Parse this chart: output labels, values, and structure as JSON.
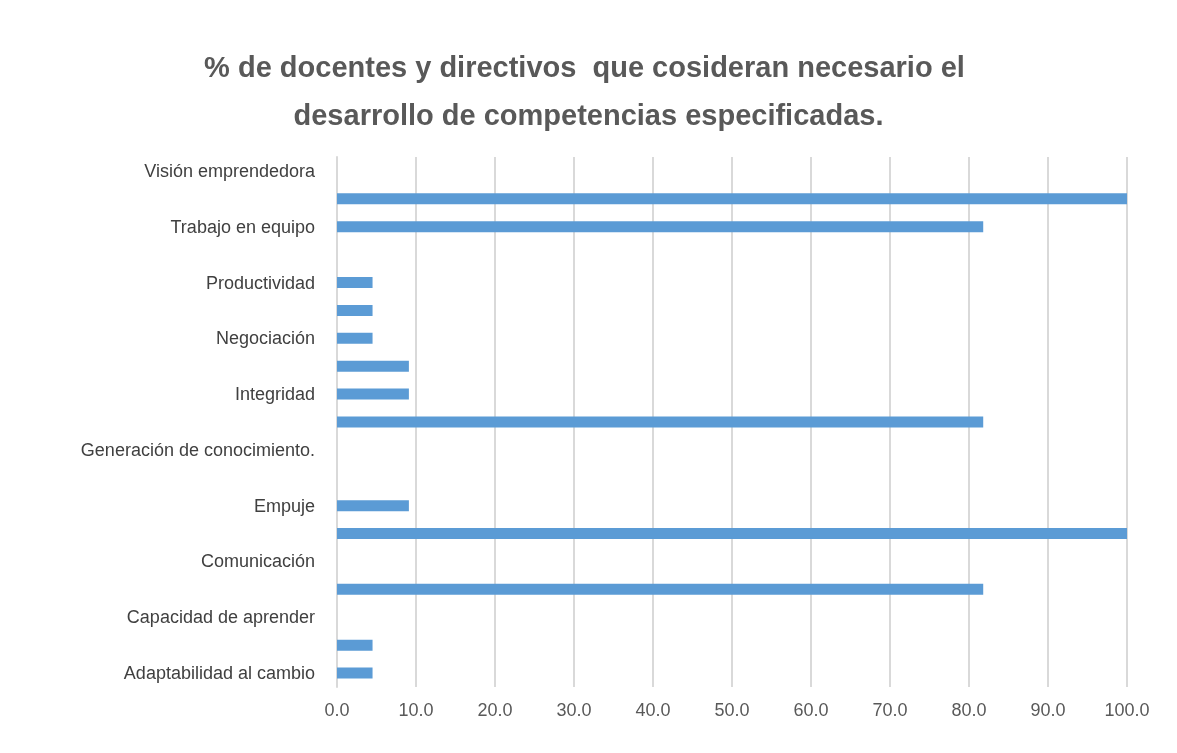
{
  "chart_data": {
    "type": "bar",
    "orientation": "horizontal",
    "title": "% de docentes y directivos  que cosideran necesario el desarrollo de competencias especificadas.",
    "categories": [
      "Visión emprendedora",
      null,
      "Trabajo en equipo",
      null,
      "Productividad",
      null,
      "Negociación",
      null,
      "Integridad",
      null,
      "Generación de conocimiento.",
      null,
      "Empuje",
      null,
      "Comunicación",
      null,
      "Capacidad de aprender",
      null,
      "Adaptabilidad al cambio"
    ],
    "values": [
      null,
      100,
      81.8,
      null,
      4.5,
      4.5,
      4.5,
      9.1,
      9.1,
      81.8,
      null,
      null,
      9.1,
      100,
      null,
      81.8,
      null,
      4.5,
      4.5
    ],
    "color": "#5b9bd5",
    "xlim": [
      0,
      100
    ],
    "xticks": [
      {
        "value": 0,
        "label": "0.0"
      },
      {
        "value": 10,
        "label": "10.0"
      },
      {
        "value": 20,
        "label": "20.0"
      },
      {
        "value": 30,
        "label": "30.0"
      },
      {
        "value": 40,
        "label": "40.0"
      },
      {
        "value": 50,
        "label": "50.0"
      },
      {
        "value": 60,
        "label": "60.0"
      },
      {
        "value": 70,
        "label": "70.0"
      },
      {
        "value": 80,
        "label": "80.0"
      },
      {
        "value": 90,
        "label": "90.0"
      },
      {
        "value": 100,
        "label": "100.0"
      }
    ],
    "grid": "x"
  }
}
